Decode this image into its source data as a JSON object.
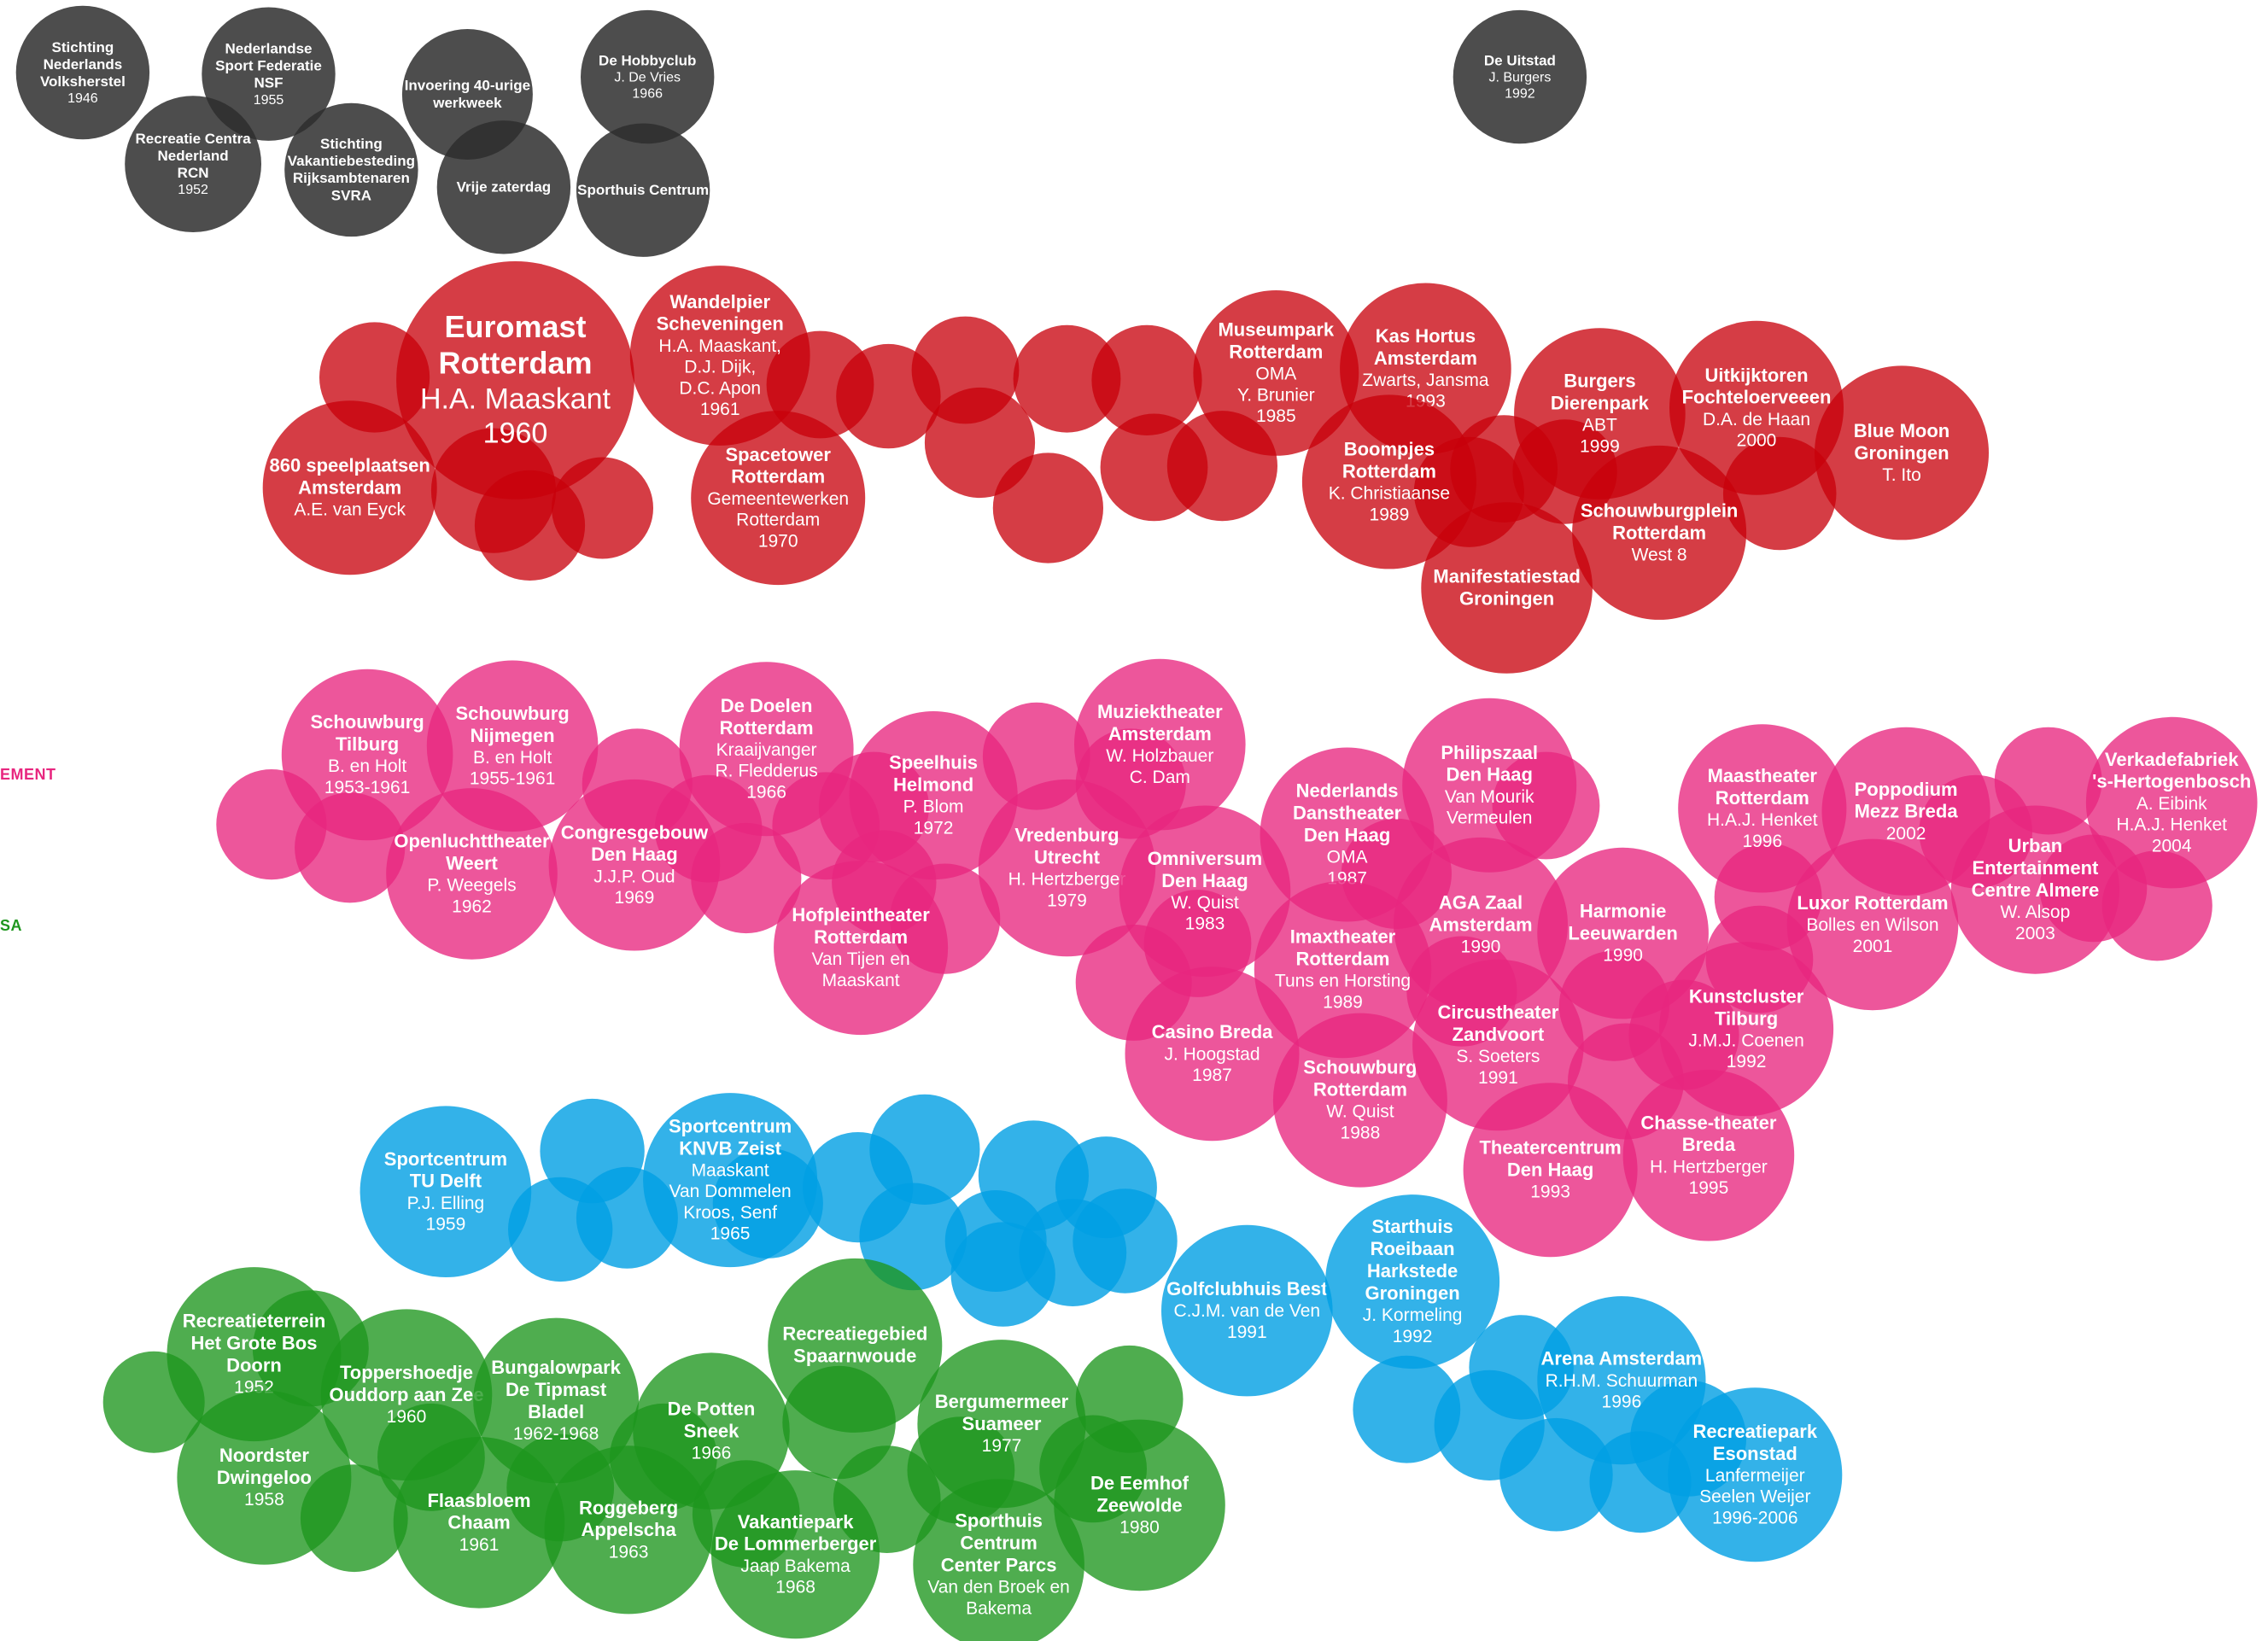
{
  "colors": {
    "gray": "#2e2e2e",
    "red": "#c8000a",
    "pink": "#e8267f",
    "blue": "#009fe3",
    "green": "#1e961e",
    "pink_label": "#e8267f",
    "green_label": "#1e961e"
  },
  "edge_labels": {
    "pink": "EMENT",
    "green": "SA"
  },
  "groups": [
    {
      "id": "gray",
      "bubbles": [
        {
          "lines": [
            "Stichting",
            "Nederlands",
            "Volksherstel"
          ],
          "year": "1946"
        },
        {
          "lines": [
            "Nederlandse",
            "Sport Federatie",
            "NSF"
          ],
          "year": "1955"
        },
        {
          "lines": [
            "Recreatie Centra",
            "Nederland",
            "RCN"
          ],
          "year": "1952"
        },
        {
          "lines": [
            "Stichting",
            "Vakantiebesteding",
            "Rijksambtenaren",
            "SVRA"
          ],
          "year": ""
        },
        {
          "lines": [
            "Invoering 40-urige",
            "werkweek"
          ],
          "year": ""
        },
        {
          "lines": [
            "Vrije zaterdag"
          ],
          "year": ""
        },
        {
          "lines": [
            "De Hobbyclub"
          ],
          "sub": [
            "J. De Vries"
          ],
          "year": "1966"
        },
        {
          "lines": [
            "Sporthuis Centrum"
          ],
          "year": ""
        },
        {
          "lines": [
            "De Uitstad"
          ],
          "sub": [
            "J. Burgers"
          ],
          "year": "1992"
        }
      ]
    },
    {
      "id": "red",
      "bubbles": [
        {
          "lines": [
            "Euromast",
            "Rotterdam"
          ],
          "sub": [
            "H.A. Maaskant"
          ],
          "year": "1960"
        },
        {
          "lines": [
            "860 speelplaatsen",
            "Amsterdam"
          ],
          "sub": [
            "A.E. van Eyck"
          ],
          "year": ""
        },
        {
          "lines": [
            "Wandelpier",
            "Scheveningen"
          ],
          "sub": [
            "H.A. Maaskant,",
            "D.J. Dijk,",
            "D.C. Apon"
          ],
          "year": "1961"
        },
        {
          "lines": [
            "Spacetower",
            "Rotterdam"
          ],
          "sub": [
            "Gemeentewerken",
            "Rotterdam"
          ],
          "year": "1970"
        },
        {
          "lines": [
            "Museumpark",
            "Rotterdam"
          ],
          "sub": [
            "OMA",
            "Y. Brunier"
          ],
          "year": "1985"
        },
        {
          "lines": [
            "Kas Hortus",
            "Amsterdam"
          ],
          "sub": [
            "Zwarts, Jansma"
          ],
          "year": "1993"
        },
        {
          "lines": [
            "Boompjes",
            "Rotterdam"
          ],
          "sub": [
            "K. Christiaanse"
          ],
          "year": "1989"
        },
        {
          "lines": [
            "Burgers",
            "Dierenpark"
          ],
          "sub": [
            "ABT"
          ],
          "year": "1999"
        },
        {
          "lines": [
            "Uitkijktoren",
            "Fochteloerveeen"
          ],
          "sub": [
            "D.A. de Haan"
          ],
          "year": "2000"
        },
        {
          "lines": [
            "Blue Moon",
            "Groningen"
          ],
          "sub": [
            "T. Ito"
          ],
          "year": ""
        },
        {
          "lines": [
            "Schouwburgplein",
            "Rotterdam"
          ],
          "sub": [
            "West 8"
          ],
          "year": ""
        },
        {
          "lines": [
            "Manifestatiestad",
            "Groningen"
          ],
          "year": ""
        }
      ]
    },
    {
      "id": "pink",
      "bubbles": [
        {
          "lines": [
            "Schouwburg",
            "Tilburg"
          ],
          "sub": [
            "B. en Holt"
          ],
          "year": "1953-1961"
        },
        {
          "lines": [
            "Schouwburg",
            "Nijmegen"
          ],
          "sub": [
            "B. en Holt"
          ],
          "year": "1955-1961"
        },
        {
          "lines": [
            "De Doelen",
            "Rotterdam"
          ],
          "sub": [
            "Kraaijvanger",
            "R. Fledderus"
          ],
          "year": "1966"
        },
        {
          "lines": [
            "Openluchttheater",
            "Weert"
          ],
          "sub": [
            "P. Weegels"
          ],
          "year": "1962"
        },
        {
          "lines": [
            "Congresgebouw",
            "Den Haag"
          ],
          "sub": [
            "J.J.P. Oud"
          ],
          "year": "1969"
        },
        {
          "lines": [
            "Speelhuis",
            "Helmond"
          ],
          "sub": [
            "P. Blom"
          ],
          "year": "1972"
        },
        {
          "lines": [
            "Muziektheater",
            "Amsterdam"
          ],
          "sub": [
            "W. Holzbauer",
            "C. Dam"
          ],
          "year": ""
        },
        {
          "lines": [
            "Hofpleintheater",
            "Rotterdam"
          ],
          "sub": [
            "Van Tijen en",
            "Maaskant"
          ],
          "year": ""
        },
        {
          "lines": [
            "Vredenburg",
            "Utrecht"
          ],
          "sub": [
            "H. Hertzberger"
          ],
          "year": "1979"
        },
        {
          "lines": [
            "Omniversum",
            "Den Haag"
          ],
          "sub": [
            "W. Quist"
          ],
          "year": "1983"
        },
        {
          "lines": [
            "Nederlands",
            "Danstheater",
            "Den Haag"
          ],
          "sub": [
            "OMA"
          ],
          "year": "1987"
        },
        {
          "lines": [
            "Philipszaal",
            "Den Haag"
          ],
          "sub": [
            "Van Mourik",
            "Vermeulen"
          ],
          "year": ""
        },
        {
          "lines": [
            "AGA Zaal",
            "Amsterdam"
          ],
          "year": "1990"
        },
        {
          "lines": [
            "Imaxtheater",
            "Rotterdam"
          ],
          "sub": [
            "Tuns en Horsting"
          ],
          "year": "1989"
        },
        {
          "lines": [
            "Casino Breda"
          ],
          "sub": [
            "J. Hoogstad"
          ],
          "year": "1987"
        },
        {
          "lines": [
            "Schouwburg",
            "Rotterdam"
          ],
          "sub": [
            "W. Quist"
          ],
          "year": "1988"
        },
        {
          "lines": [
            "Circustheater",
            "Zandvoort"
          ],
          "sub": [
            "S. Soeters"
          ],
          "year": "1991"
        },
        {
          "lines": [
            "Harmonie",
            "Leeuwarden"
          ],
          "year": "1990"
        },
        {
          "lines": [
            "Theatercentrum",
            "Den Haag"
          ],
          "year": "1993"
        },
        {
          "lines": [
            "Chasse-theater",
            "Breda"
          ],
          "sub": [
            "H. Hertzberger"
          ],
          "year": "1995"
        },
        {
          "lines": [
            "Kunstcluster",
            "Tilburg"
          ],
          "sub": [
            "J.M.J. Coenen"
          ],
          "year": "1992"
        },
        {
          "lines": [
            "Maastheater",
            "Rotterdam"
          ],
          "sub": [
            "H.A.J. Henket"
          ],
          "year": "1996"
        },
        {
          "lines": [
            "Poppodium",
            "Mezz Breda"
          ],
          "year": "2002"
        },
        {
          "lines": [
            "Luxor Rotterdam"
          ],
          "sub": [
            "Bolles en Wilson"
          ],
          "year": "2001"
        },
        {
          "lines": [
            "Urban",
            "Entertainment",
            "Centre Almere"
          ],
          "sub": [
            "W. Alsop"
          ],
          "year": "2003"
        },
        {
          "lines": [
            "Verkadefabriek",
            "'s-Hertogenbosch"
          ],
          "sub": [
            "A. Eibink",
            "H.A.J. Henket"
          ],
          "year": "2004"
        }
      ]
    },
    {
      "id": "blue",
      "bubbles": [
        {
          "lines": [
            "Sportcentrum",
            "TU Delft"
          ],
          "sub": [
            "P.J. Elling"
          ],
          "year": "1959"
        },
        {
          "lines": [
            "Sportcentrum",
            "KNVB Zeist"
          ],
          "sub": [
            "Maaskant",
            "Van Dommelen",
            "Kroos, Senf"
          ],
          "year": "1965"
        },
        {
          "lines": [
            "Golfclubhuis Best"
          ],
          "sub": [
            "C.J.M. van de Ven"
          ],
          "year": "1991"
        },
        {
          "lines": [
            "Starthuis",
            "Roeibaan",
            "Harkstede",
            "Groningen"
          ],
          "sub": [
            "J. Kormeling"
          ],
          "year": "1992"
        },
        {
          "lines": [
            "Arena Amsterdam"
          ],
          "sub": [
            "R.H.M. Schuurman"
          ],
          "year": "1996"
        },
        {
          "lines": [
            "Recreatiepark",
            "Esonstad"
          ],
          "sub": [
            "Lanfermeijer",
            "Seelen Weijer"
          ],
          "year": "1996-2006"
        }
      ]
    },
    {
      "id": "green",
      "bubbles": [
        {
          "lines": [
            "Recreatieterrein",
            "Het Grote Bos",
            "Doorn"
          ],
          "year": "1952"
        },
        {
          "lines": [
            "Toppershoedje",
            "Ouddorp aan Zee"
          ],
          "year": "1960"
        },
        {
          "lines": [
            "Bungalowpark",
            "De Tipmast",
            "Bladel"
          ],
          "year": "1962-1968"
        },
        {
          "lines": [
            "Noordster",
            "Dwingeloo"
          ],
          "year": "1958"
        },
        {
          "lines": [
            "Flaasbloem",
            "Chaam"
          ],
          "year": "1961"
        },
        {
          "lines": [
            "Roggeberg",
            "Appelscha"
          ],
          "year": "1963"
        },
        {
          "lines": [
            "De Potten",
            "Sneek"
          ],
          "year": "1966"
        },
        {
          "lines": [
            "Recreatiegebied",
            "Spaarnwoude"
          ],
          "year": ""
        },
        {
          "lines": [
            "Bergumermeer",
            "Suameer"
          ],
          "year": "1977"
        },
        {
          "lines": [
            "Vakantiepark",
            "De Lommerberger"
          ],
          "sub": [
            "Jaap Bakema"
          ],
          "year": "1968"
        },
        {
          "lines": [
            "Sporthuis",
            "Centrum",
            "Center Parcs"
          ],
          "sub": [
            "Van den Broek en",
            "Bakema"
          ],
          "year": ""
        },
        {
          "lines": [
            "De Eemhof",
            "Zeewolde"
          ],
          "year": "1980"
        }
      ]
    }
  ]
}
